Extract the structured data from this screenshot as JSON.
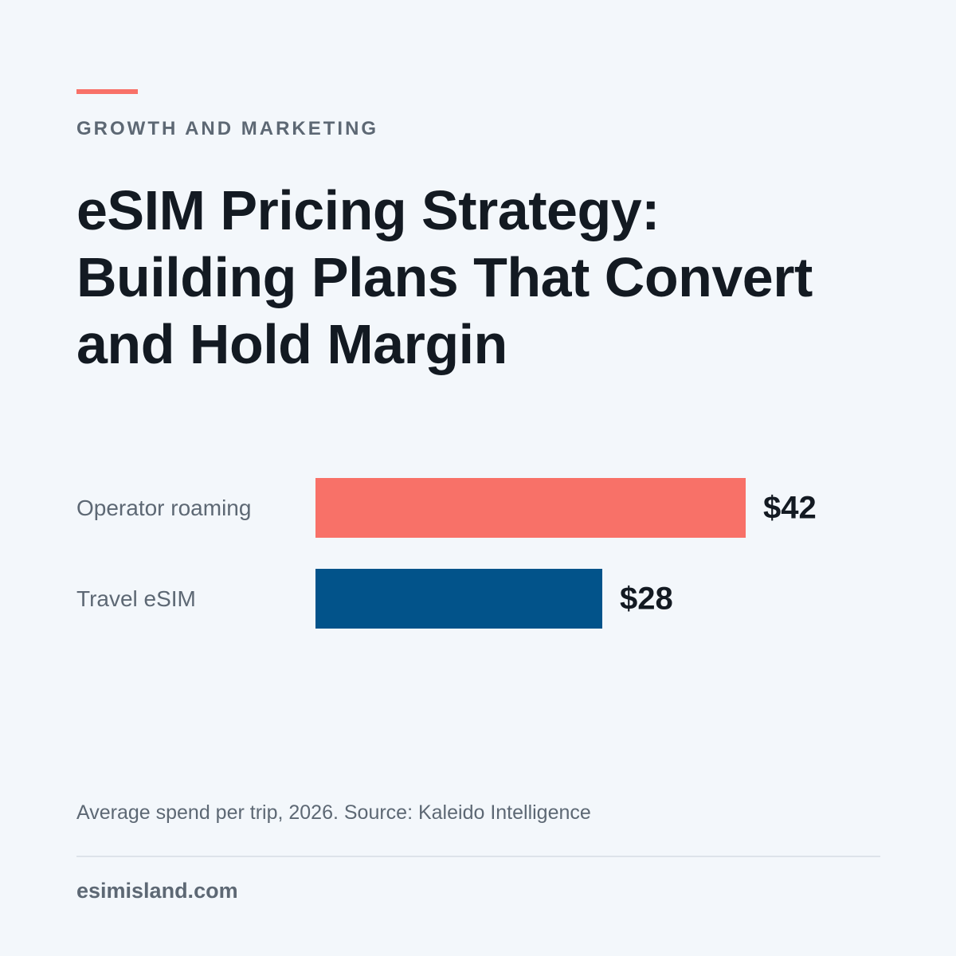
{
  "header": {
    "eyebrow": "GROWTH AND MARKETING",
    "title": "eSIM Pricing Strategy: Building Plans That Convert and Hold Margin"
  },
  "colors": {
    "accent": "#f87168",
    "operator_bar": "#f87168",
    "esim_bar": "#02538a"
  },
  "chart_data": {
    "type": "bar",
    "orientation": "horizontal",
    "categories": [
      "Operator roaming",
      "Travel eSIM"
    ],
    "values": [
      42,
      28
    ],
    "value_labels": [
      "$42",
      "$28"
    ],
    "colors": [
      "#f87168",
      "#02538a"
    ],
    "title": "",
    "xlabel": "",
    "ylabel": "",
    "grid": false
  },
  "footer": {
    "note": "Average spend per trip, 2026. Source: Kaleido Intelligence",
    "site": "esimisland.com"
  }
}
